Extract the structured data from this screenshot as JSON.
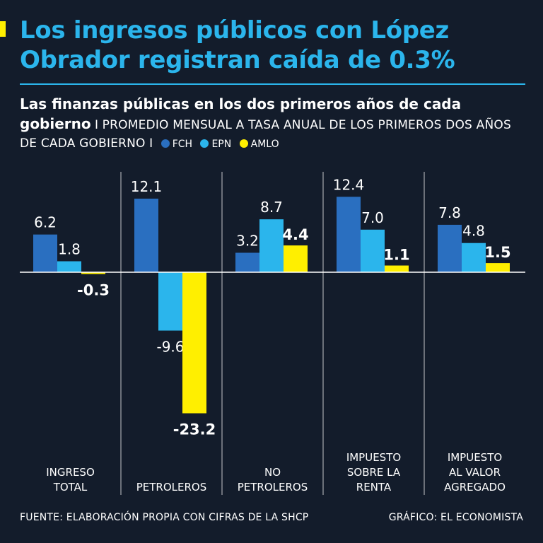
{
  "title": "Los ingresos públicos con López Obrador registran caída de 0.3%",
  "subtitle": {
    "bold": "Las finanzas públicas en los dos primeros años de cada gobierno",
    "separator1": "I",
    "rest": "PROMEDIO MENSUAL A TASA ANUAL DE LOS PRIMEROS DOS AÑOS DE CADA GOBIERNO",
    "separator2": "I"
  },
  "legend": [
    {
      "label": "FCH",
      "color": "#2a6fc0"
    },
    {
      "label": "EPN",
      "color": "#2bb5ec"
    },
    {
      "label": "AMLO",
      "color": "#ffef00"
    }
  ],
  "footer": {
    "source": "FUENTE: ELABORACIÓN PROPIA CON CIFRAS DE LA SHCP",
    "credit": "GRÁFICO: EL ECONOMISTA"
  },
  "chart_data": {
    "type": "bar",
    "title": "Las finanzas públicas en los dos primeros años de cada gobierno",
    "categories": [
      [
        "INGRESO",
        "TOTAL"
      ],
      [
        "PETROLEROS"
      ],
      [
        "NO",
        "PETROLEROS"
      ],
      [
        "IMPUESTO",
        "SOBRE LA",
        "RENTA"
      ],
      [
        "IMPUESTO",
        "AL VALOR",
        "AGREGADO"
      ]
    ],
    "series": [
      {
        "name": "FCH",
        "color": "#2a6fc0",
        "values": [
          6.2,
          12.1,
          3.2,
          12.4,
          7.8
        ],
        "labels": [
          "6.2",
          "12.1",
          "3.2",
          "12.4",
          "7.8"
        ]
      },
      {
        "name": "EPN",
        "color": "#2bb5ec",
        "values": [
          1.8,
          -9.6,
          8.7,
          7.0,
          4.8
        ],
        "labels": [
          "1.8",
          "-9.6",
          "8.7",
          "7.0",
          "4.8"
        ]
      },
      {
        "name": "AMLO",
        "color": "#ffef00",
        "values": [
          -0.3,
          -23.2,
          4.4,
          1.1,
          1.5
        ],
        "labels": [
          "-0.3",
          "-23.2",
          "4.4",
          "1.1",
          "1.5"
        ]
      }
    ],
    "xlabel": "",
    "ylabel": "",
    "ylim": [
      -23.2,
      12.4
    ],
    "grid": false,
    "legend": "top-right"
  }
}
